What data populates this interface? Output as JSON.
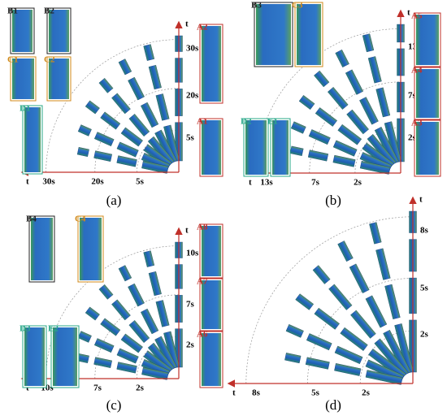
{
  "panels": [
    {
      "label": "(a)",
      "axis_labels": [
        "t",
        "t"
      ],
      "vertical_ticks": [
        "30s",
        "20s",
        "5s"
      ],
      "horizontal_ticks": [
        "30s",
        "20s",
        "5s"
      ],
      "insets": [
        "B1",
        "B2",
        "C1",
        "C2",
        "D1",
        "A2",
        "A1"
      ]
    },
    {
      "label": "(b)",
      "axis_labels": [
        "t",
        "t"
      ],
      "vertical_ticks": [
        "13s",
        "7s",
        "2s"
      ],
      "horizontal_ticks": [
        "13s",
        "7s",
        "2s"
      ],
      "insets": [
        "B3",
        "C3",
        "D2",
        "E1",
        "A5",
        "A4",
        "A3"
      ]
    },
    {
      "label": "(c)",
      "axis_labels": [
        "t",
        "t"
      ],
      "vertical_ticks": [
        "10s",
        "7s",
        "2s"
      ],
      "horizontal_ticks": [
        "10s",
        "7s",
        "2s"
      ],
      "insets": [
        "B4",
        "C4",
        "D3",
        "E2",
        "A8",
        "A7",
        "A6"
      ]
    },
    {
      "label": "(d)",
      "axis_labels": [
        "t",
        "t"
      ],
      "vertical_ticks": [
        "8s",
        "5s",
        "2s"
      ],
      "horizontal_ticks": [
        "8s",
        "5s",
        "2s"
      ],
      "insets": []
    }
  ]
}
